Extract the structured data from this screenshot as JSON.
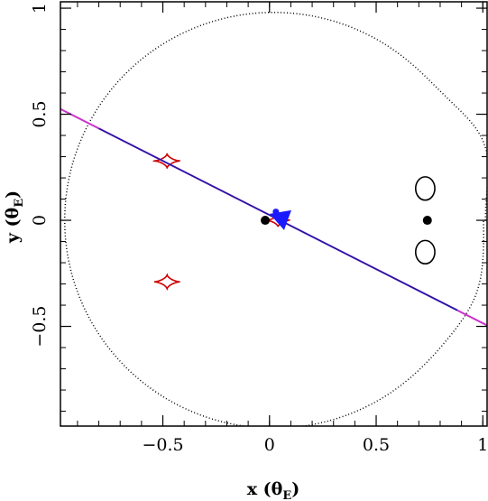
{
  "colors": {
    "caustic": "#cc0000",
    "trajectory": "#1a1aa6",
    "trajectory_ends": "#cc33cc",
    "source_marker": "#1a1aff",
    "critical_curve": "#000000",
    "axes": "#000000"
  },
  "chart_data": {
    "type": "line",
    "title": "",
    "xlabel": "x (θ",
    "xlabel_sub": "E",
    "xlabel_close": ")",
    "ylabel": "y (θ",
    "ylabel_sub": "E",
    "ylabel_close": ")",
    "xlim": [
      -0.98,
      1.02
    ],
    "ylim": [
      -0.97,
      1.03
    ],
    "xticks": [
      {
        "value": -0.5,
        "label": "−0.5"
      },
      {
        "value": 0,
        "label": "0"
      },
      {
        "value": 0.5,
        "label": "0.5"
      },
      {
        "value": 1,
        "label": "1"
      }
    ],
    "yticks": [
      {
        "value": -0.5,
        "label": "−0.5"
      },
      {
        "value": 0,
        "label": "0"
      },
      {
        "value": 0.5,
        "label": "0.5"
      },
      {
        "value": 1,
        "label": "1"
      }
    ],
    "grid": false,
    "legend": "none",
    "lens_masses": [
      {
        "x": -0.02,
        "y": 0.0
      },
      {
        "x": 0.74,
        "y": 0.0
      }
    ],
    "source_point": {
      "x": 0.03,
      "y": 0.04
    },
    "trajectory": {
      "slope": -0.51,
      "intercept": 0.025,
      "x_range": [
        -0.98,
        1.02
      ]
    },
    "caustics": [
      {
        "name": "upper planetary caustic",
        "cx": -0.48,
        "cy": 0.28,
        "size": 0.055
      },
      {
        "name": "lower planetary caustic",
        "cx": -0.48,
        "cy": -0.29,
        "size": 0.055
      },
      {
        "name": "central caustic",
        "cx": 0.04,
        "cy": 0.0,
        "size": 0.05
      }
    ],
    "small_critical_loops": [
      {
        "cx": 0.73,
        "cy": 0.15,
        "rx": 0.045,
        "ry": 0.055
      },
      {
        "cx": 0.73,
        "cy": -0.15,
        "rx": 0.045,
        "ry": 0.055
      }
    ],
    "outer_critical_curve": {
      "radius": 0.98
    }
  }
}
